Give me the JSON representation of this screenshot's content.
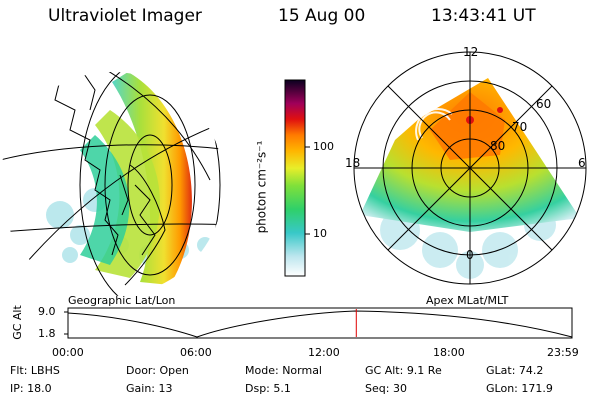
{
  "header": {
    "instrument": "Ultraviolet Imager",
    "date": "15 Aug 00",
    "time": "13:43:41 UT"
  },
  "colorbar": {
    "unit_label": "photon cm⁻²s⁻¹",
    "ticks": [
      "100",
      "10"
    ],
    "scale": "log"
  },
  "geo_panel": {
    "label": "Geographic Lat/Lon"
  },
  "polar_panel": {
    "label": "Apex MLat/MLT",
    "mlt_labels": {
      "top": "12",
      "left": "18",
      "right": "6",
      "bottom": "0"
    },
    "lat_labels": [
      "60",
      "70",
      "80"
    ]
  },
  "altitude_plot": {
    "ylabel": "GC Alt",
    "y_ticks": [
      "9.0",
      "1.8"
    ],
    "x_ticks": [
      "00:00",
      "06:00",
      "12:00",
      "18:00",
      "23:59"
    ],
    "current_time_fraction": 0.572,
    "marker_color": "#e00000"
  },
  "status": {
    "row1": [
      {
        "key": "Flt:",
        "value": "LBHS"
      },
      {
        "key": "Door:",
        "value": "Open"
      },
      {
        "key": "Mode:",
        "value": "Normal"
      },
      {
        "key": "GC Alt:",
        "value": "9.1 Re"
      },
      {
        "key": "GLat:",
        "value": "74.2"
      }
    ],
    "row2": [
      {
        "key": "IP:",
        "value": "18.0"
      },
      {
        "key": "Gain:",
        "value": "13"
      },
      {
        "key": "Dsp:",
        "value": "5.1"
      },
      {
        "key": "Seq:",
        "value": "30"
      },
      {
        "key": "GLon:",
        "value": "171.9"
      }
    ]
  }
}
